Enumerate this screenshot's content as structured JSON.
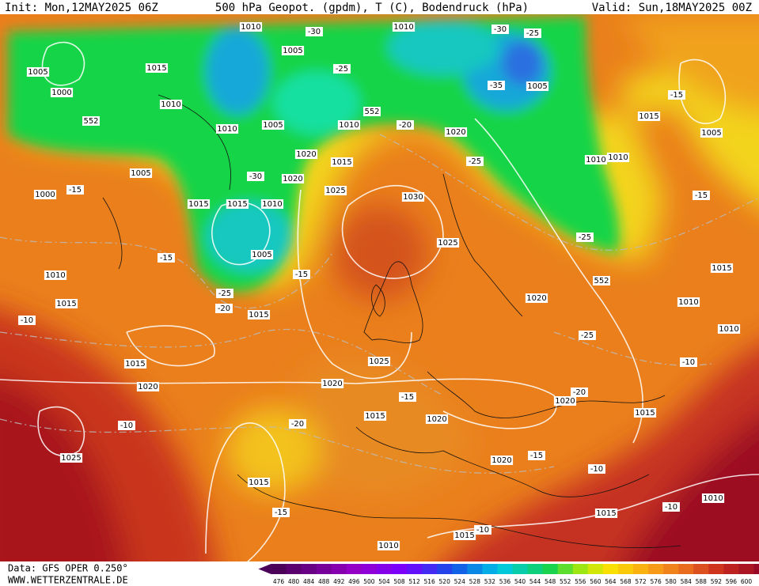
{
  "header": {
    "init": "Init: Mon,12MAY2025 06Z",
    "title": "500 hPa Geopot. (gpdm), T (C), Bodendruck (hPa)",
    "valid": "Valid: Sun,18MAY2025 00Z"
  },
  "footer": {
    "source": "Data: GFS OPER 0.250°",
    "site": "WWW.WETTERZENTRALE.DE"
  },
  "colorbar": {
    "labels": [
      "476",
      "480",
      "484",
      "488",
      "492",
      "496",
      "500",
      "504",
      "508",
      "512",
      "516",
      "520",
      "524",
      "528",
      "532",
      "536",
      "540",
      "544",
      "548",
      "552",
      "556",
      "560",
      "564",
      "568",
      "572",
      "576",
      "580",
      "584",
      "588",
      "592",
      "596",
      "600"
    ]
  },
  "map_labels": [
    "1010",
    "-30",
    "1010",
    "-30",
    "-25",
    "1005",
    "1015",
    "1005",
    "-25",
    "-35",
    "1005",
    "1000",
    "1010",
    "552",
    "1005",
    "1010",
    "552",
    "-20",
    "1020",
    "1010",
    "-15",
    "1015",
    "1005",
    "1020",
    "1015",
    "1005",
    "-30",
    "1020",
    "-25",
    "1010",
    "1010",
    "1000",
    "-15",
    "1025",
    "1030",
    "1015",
    "1015",
    "1010",
    "-15",
    "1005",
    "-15",
    "1025",
    "-25",
    "1010",
    "-15",
    "552",
    "1015",
    "-25",
    "1015",
    "-20",
    "1015",
    "1020",
    "1010",
    "-10",
    "1010",
    "-25",
    "1015",
    "1025",
    "-10",
    "1020",
    "1020",
    "-15",
    "-20",
    "1020",
    "1015",
    "1020",
    "1015",
    "-10",
    "-20",
    "1025",
    "1020",
    "-15",
    "-10",
    "1015",
    "-15",
    "1015",
    "-10",
    "1010",
    "-10",
    "1015",
    "1010"
  ]
}
